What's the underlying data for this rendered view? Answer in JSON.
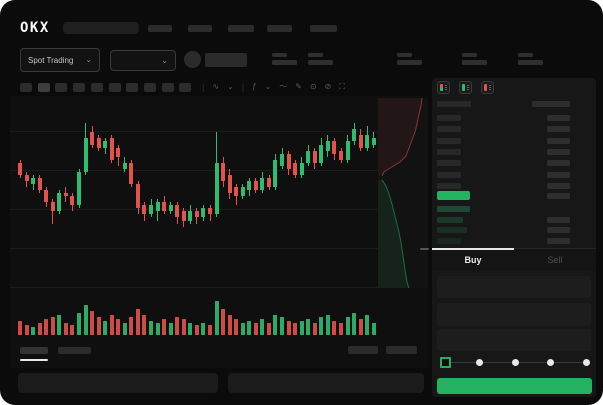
{
  "app": {
    "logo_text": "OKX"
  },
  "colors": {
    "green": "#2ebd70",
    "red": "#e2534f",
    "button_green": "#23b262",
    "bid_tint": "rgba(46,189,112,",
    "bar_gray": "#282828"
  },
  "icons": {
    "chevron_down": "⌄",
    "wave": "∿",
    "fx": "ƒ",
    "tilde": "〜",
    "pencil": "✎",
    "camera": "⊙",
    "slash": "⊘",
    "fullscreen": "⛶",
    "divider": "|"
  },
  "header": {
    "nav_items": 5
  },
  "market_bar": {
    "pair_selector_label": "Spot Trading"
  },
  "toolbar": {
    "interval_blocks": 10,
    "active_interval_index": 1
  },
  "orderbook": {
    "view_modes": [
      "book-combined",
      "book-bids-only",
      "book-asks-only"
    ],
    "ask_rows": 7,
    "bid_rows": 4,
    "bid_left_widths": [
      33,
      26,
      30,
      24
    ],
    "bid_tint_alphas": [
      0.3,
      0.2,
      0.15,
      0.1
    ]
  },
  "trade_panel": {
    "buy_tab_label": "Buy",
    "sell_tab_label": "Sell",
    "slider_steps": 5,
    "slider_active_step": 0
  },
  "chart_data": {
    "type": "candlestick+volume+depth",
    "title": "",
    "xlabel": "",
    "ylabel": "",
    "value_scale": "relative 0-100 (no axis labels visible)",
    "grid": true,
    "candles": [
      [
        62,
        54,
        64,
        52
      ],
      [
        54,
        50,
        56,
        46
      ],
      [
        48,
        52,
        54,
        44
      ],
      [
        52,
        44,
        54,
        42
      ],
      [
        44,
        36,
        46,
        33
      ],
      [
        36,
        30,
        38,
        22
      ],
      [
        30,
        42,
        44,
        28
      ],
      [
        42,
        40,
        46,
        36
      ],
      [
        40,
        34,
        42,
        30
      ],
      [
        34,
        56,
        58,
        32
      ],
      [
        56,
        78,
        88,
        54
      ],
      [
        82,
        74,
        86,
        72
      ],
      [
        78,
        72,
        80,
        70
      ],
      [
        72,
        76,
        78,
        68
      ],
      [
        78,
        64,
        80,
        62
      ],
      [
        72,
        66,
        74,
        60
      ],
      [
        58,
        62,
        66,
        56
      ],
      [
        62,
        48,
        64,
        46
      ],
      [
        48,
        32,
        50,
        28
      ],
      [
        34,
        28,
        36,
        24
      ],
      [
        28,
        34,
        38,
        26
      ],
      [
        30,
        36,
        38,
        24
      ],
      [
        36,
        30,
        40,
        28
      ],
      [
        30,
        34,
        36,
        28
      ],
      [
        34,
        26,
        36,
        22
      ],
      [
        30,
        24,
        32,
        20
      ],
      [
        24,
        30,
        34,
        22
      ],
      [
        30,
        26,
        32,
        22
      ],
      [
        26,
        32,
        34,
        24
      ],
      [
        32,
        28,
        34,
        24
      ],
      [
        28,
        62,
        82,
        26
      ],
      [
        62,
        50,
        66,
        46
      ],
      [
        54,
        42,
        58,
        38
      ],
      [
        46,
        40,
        48,
        34
      ],
      [
        40,
        46,
        48,
        38
      ],
      [
        44,
        50,
        52,
        40
      ],
      [
        50,
        44,
        52,
        42
      ],
      [
        44,
        52,
        56,
        42
      ],
      [
        52,
        46,
        54,
        44
      ],
      [
        46,
        64,
        68,
        44
      ],
      [
        60,
        68,
        72,
        58
      ],
      [
        68,
        58,
        70,
        54
      ],
      [
        62,
        54,
        64,
        52
      ],
      [
        54,
        62,
        66,
        52
      ],
      [
        62,
        70,
        74,
        60
      ],
      [
        70,
        62,
        72,
        58
      ],
      [
        62,
        74,
        78,
        60
      ],
      [
        70,
        76,
        80,
        66
      ],
      [
        76,
        68,
        78,
        64
      ],
      [
        70,
        64,
        72,
        62
      ],
      [
        64,
        76,
        80,
        62
      ],
      [
        76,
        84,
        88,
        74
      ],
      [
        80,
        72,
        84,
        70
      ],
      [
        72,
        80,
        86,
        70
      ],
      [
        74,
        78,
        82,
        72
      ]
    ],
    "volumes": [
      14,
      10,
      8,
      12,
      16,
      18,
      20,
      12,
      10,
      22,
      30,
      24,
      18,
      14,
      20,
      16,
      12,
      18,
      26,
      20,
      14,
      12,
      16,
      12,
      18,
      16,
      12,
      10,
      12,
      10,
      34,
      26,
      20,
      16,
      12,
      14,
      12,
      16,
      12,
      20,
      18,
      14,
      12,
      14,
      16,
      12,
      18,
      20,
      14,
      12,
      18,
      22,
      16,
      20,
      12
    ],
    "depth": {
      "asks_line": [
        [
          44,
          0
        ],
        [
          43,
          8
        ],
        [
          41,
          16
        ],
        [
          39,
          26
        ],
        [
          37,
          34
        ],
        [
          34,
          42
        ],
        [
          31,
          50
        ],
        [
          28,
          58
        ],
        [
          22,
          64
        ],
        [
          12,
          70
        ],
        [
          6,
          74
        ],
        [
          4,
          78
        ]
      ],
      "bids_line": [
        [
          4,
          82
        ],
        [
          8,
          88
        ],
        [
          11,
          96
        ],
        [
          14,
          106
        ],
        [
          17,
          118
        ],
        [
          20,
          130
        ],
        [
          23,
          144
        ],
        [
          25,
          158
        ],
        [
          27,
          172
        ],
        [
          29,
          184
        ],
        [
          31,
          190
        ]
      ]
    }
  }
}
